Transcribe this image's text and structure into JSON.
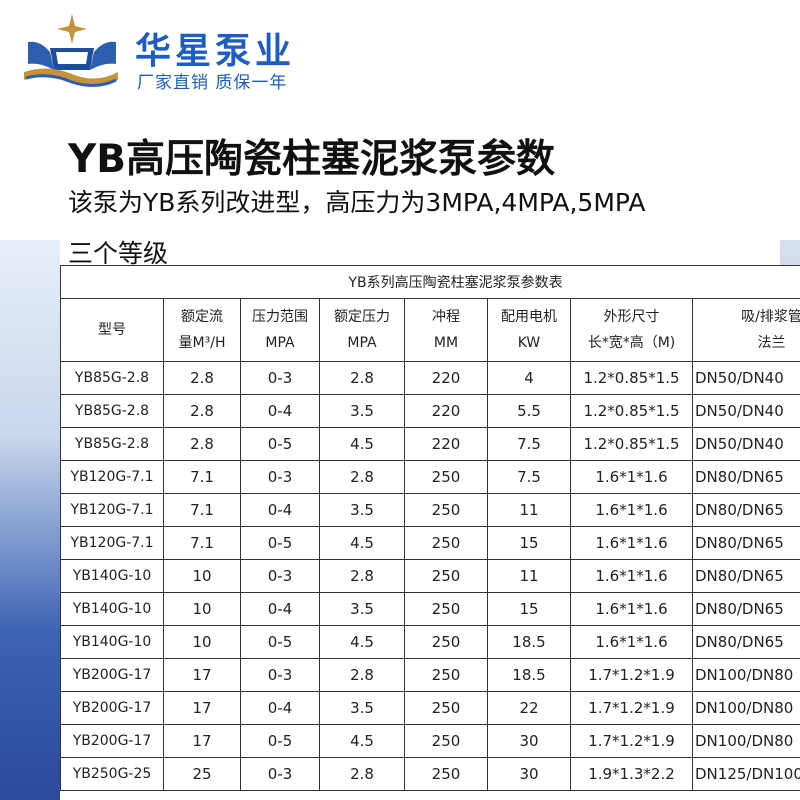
{
  "brand": {
    "name": "华星泵业",
    "tagline": "厂家直销 质保一年",
    "colors": {
      "brand_blue": "#1e5cc4",
      "logo_gold": "#c4933a",
      "logo_blue": "#2d5fb0"
    }
  },
  "title": "YB高压陶瓷柱塞泥浆泵参数",
  "subtitle": "该泵为YB系列改进型，高压力为3MPA,4MPA,5MPA",
  "subtitle2": "三个等级",
  "table": {
    "caption": "YB系列高压陶瓷柱塞泥浆泵参数表",
    "headers": [
      {
        "line1": "型号",
        "line2": ""
      },
      {
        "line1": "额定流",
        "line2": "量M³/H"
      },
      {
        "line1": "压力范围",
        "line2": "MPA"
      },
      {
        "line1": "额定压力",
        "line2": "MPA"
      },
      {
        "line1": "冲程",
        "line2": "MM"
      },
      {
        "line1": "配用电机",
        "line2": "KW"
      },
      {
        "line1": "外形尺寸",
        "line2": "长*宽*高（M)"
      },
      {
        "line1": "吸/排浆管",
        "line2": "法兰"
      }
    ],
    "rows": [
      [
        "YB85G-2.8",
        "2.8",
        "0-3",
        "2.8",
        "220",
        "4",
        "1.2*0.85*1.5",
        "DN50/DN40"
      ],
      [
        "YB85G-2.8",
        "2.8",
        "0-4",
        "3.5",
        "220",
        "5.5",
        "1.2*0.85*1.5",
        "DN50/DN40"
      ],
      [
        "YB85G-2.8",
        "2.8",
        "0-5",
        "4.5",
        "220",
        "7.5",
        "1.2*0.85*1.5",
        "DN50/DN40"
      ],
      [
        "YB120G-7.1",
        "7.1",
        "0-3",
        "2.8",
        "250",
        "7.5",
        "1.6*1*1.6",
        "DN80/DN65"
      ],
      [
        "YB120G-7.1",
        "7.1",
        "0-4",
        "3.5",
        "250",
        "11",
        "1.6*1*1.6",
        "DN80/DN65"
      ],
      [
        "YB120G-7.1",
        "7.1",
        "0-5",
        "4.5",
        "250",
        "15",
        "1.6*1*1.6",
        "DN80/DN65"
      ],
      [
        "YB140G-10",
        "10",
        "0-3",
        "2.8",
        "250",
        "11",
        "1.6*1*1.6",
        "DN80/DN65"
      ],
      [
        "YB140G-10",
        "10",
        "0-4",
        "3.5",
        "250",
        "15",
        "1.6*1*1.6",
        "DN80/DN65"
      ],
      [
        "YB140G-10",
        "10",
        "0-5",
        "4.5",
        "250",
        "18.5",
        "1.6*1*1.6",
        "DN80/DN65"
      ],
      [
        "YB200G-17",
        "17",
        "0-3",
        "2.8",
        "250",
        "18.5",
        "1.7*1.2*1.9",
        "DN100/DN80"
      ],
      [
        "YB200G-17",
        "17",
        "0-4",
        "3.5",
        "250",
        "22",
        "1.7*1.2*1.9",
        "DN100/DN80"
      ],
      [
        "YB200G-17",
        "17",
        "0-5",
        "4.5",
        "250",
        "30",
        "1.7*1.2*1.9",
        "DN100/DN80"
      ],
      [
        "YB250G-25",
        "25",
        "0-3",
        "2.8",
        "250",
        "30",
        "1.9*1.3*2.2",
        "DN125/DN100"
      ]
    ]
  }
}
